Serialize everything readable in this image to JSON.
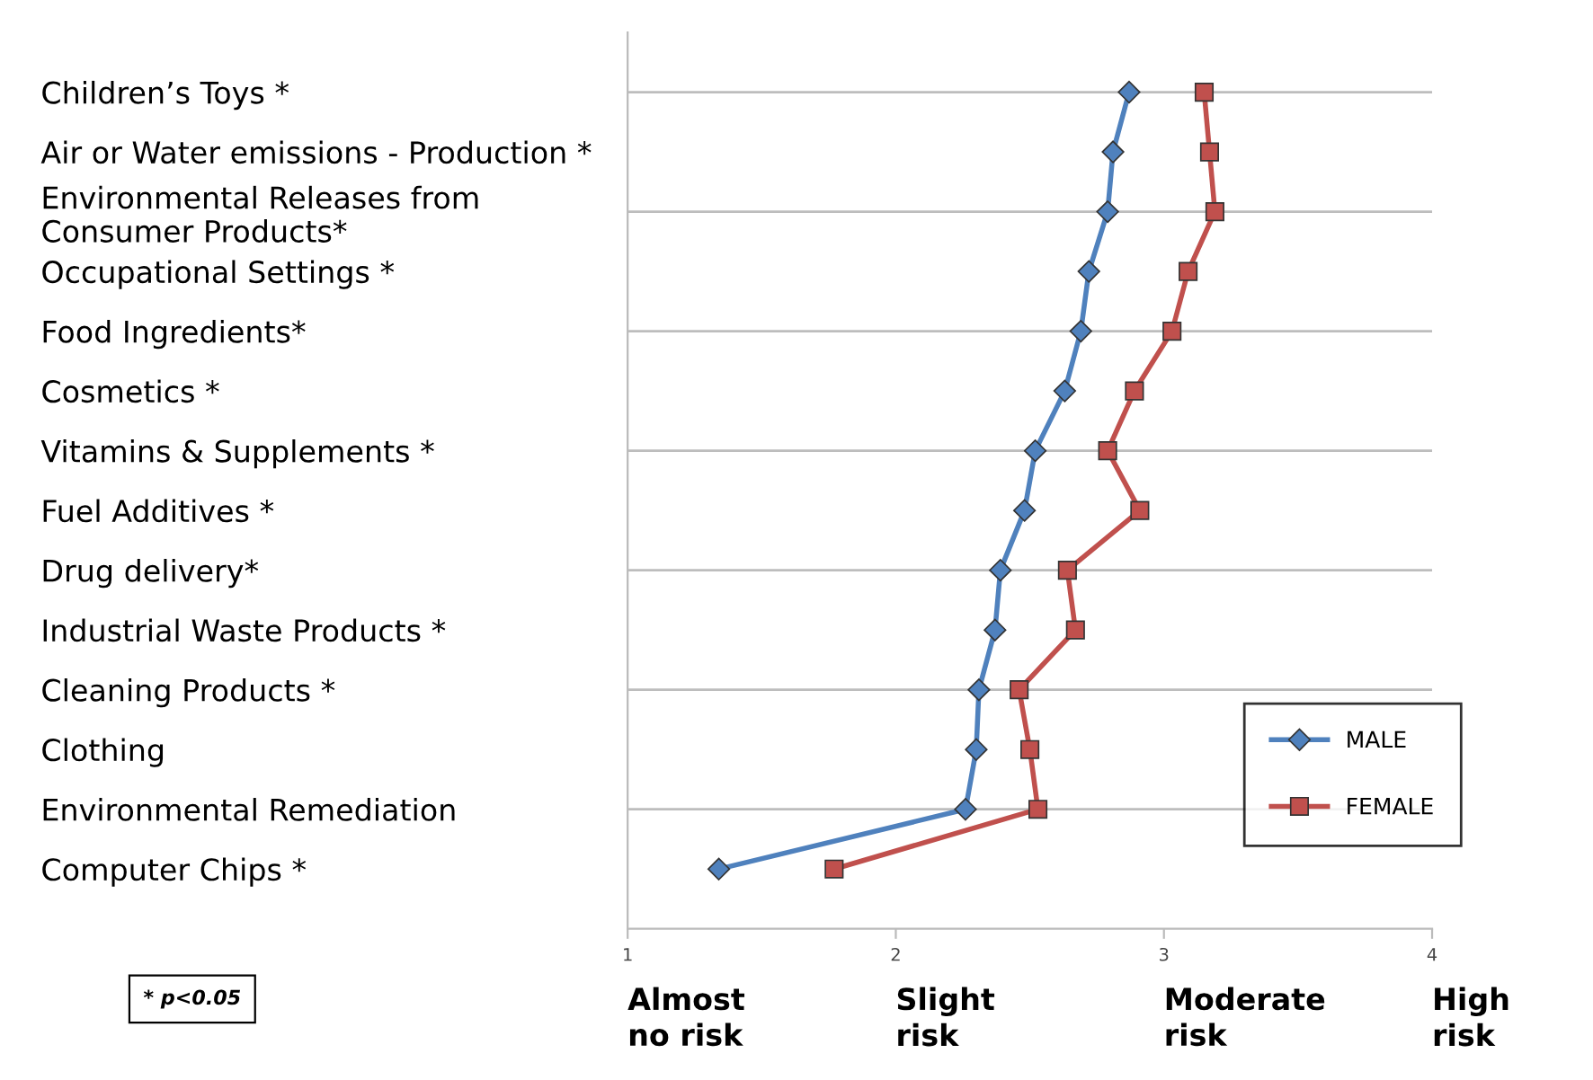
{
  "chart_data": {
    "type": "line",
    "orientation": "horizontal",
    "categories": [
      "Children’s Toys *",
      "Air or Water emissions - Production *",
      "Environmental Releases from\nConsumer Products*",
      "Occupational Settings *",
      "Food Ingredients*",
      "Cosmetics *",
      "Vitamins & Supplements *",
      "Fuel Additives *",
      "Drug delivery*",
      "Industrial Waste Products *",
      "Cleaning Products *",
      "Clothing",
      "Environmental Remediation",
      "Computer Chips *"
    ],
    "series": [
      {
        "name": "MALE",
        "color": "#4f81bd",
        "marker": "diamond",
        "values": [
          2.87,
          2.81,
          2.79,
          2.72,
          2.69,
          2.63,
          2.52,
          2.48,
          2.39,
          2.37,
          2.31,
          2.3,
          2.26,
          1.34
        ]
      },
      {
        "name": "FEMALE",
        "color": "#c0504d",
        "marker": "square",
        "values": [
          3.15,
          3.17,
          3.19,
          3.09,
          3.03,
          2.89,
          2.79,
          2.91,
          2.64,
          2.67,
          2.46,
          2.5,
          2.53,
          1.77
        ]
      }
    ],
    "xlim": [
      1,
      4
    ],
    "xticks": [
      1,
      2,
      3,
      4
    ],
    "grid": "y",
    "legend": "bottom right",
    "annotations": [
      "* p<0.05",
      "Almost\nno risk",
      "Slight\nrisk",
      "Moderate\nrisk",
      "High\nrisk"
    ]
  }
}
